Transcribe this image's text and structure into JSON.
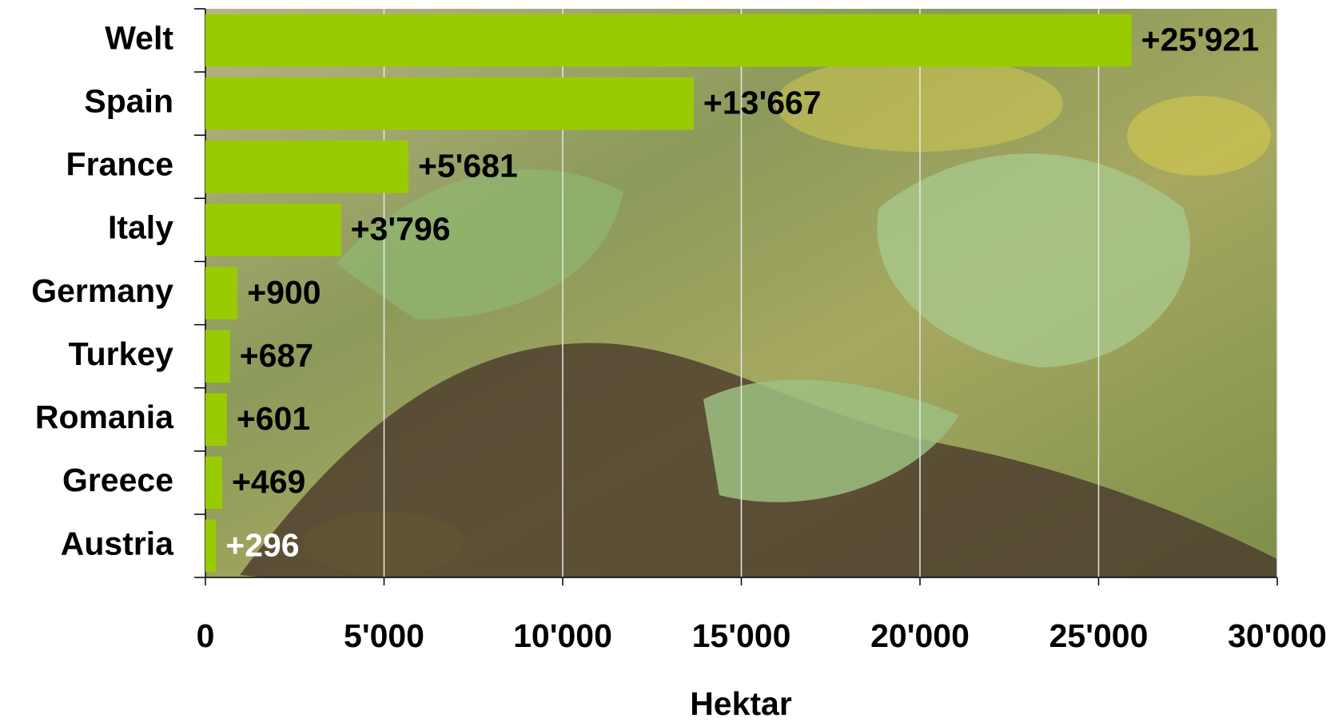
{
  "chart_data": {
    "type": "bar",
    "orientation": "horizontal",
    "categories": [
      "Welt",
      "Spain",
      "France",
      "Italy",
      "Germany",
      "Turkey",
      "Romania",
      "Greece",
      "Austria"
    ],
    "values": [
      25921,
      13667,
      5681,
      3796,
      900,
      687,
      601,
      469,
      296
    ],
    "value_labels": [
      "+25'921",
      "+13'667",
      "+5'681",
      "+3'796",
      "+900",
      "+687",
      "+601",
      "+469",
      "+296"
    ],
    "color": "#99cc00",
    "xlim": [
      0,
      30000
    ],
    "xticks": [
      0,
      {
        "value": 5000,
        "label": "5'000"
      },
      {
        "value": 10000,
        "label": "10'000"
      },
      {
        "value": 15000,
        "label": "15'000"
      },
      {
        "value": 20000,
        "label": "20'000"
      },
      {
        "value": 25000,
        "label": "25'000"
      },
      {
        "value": 30000,
        "label": "30'000"
      }
    ],
    "x_label": "Hektar",
    "grid": true
  }
}
